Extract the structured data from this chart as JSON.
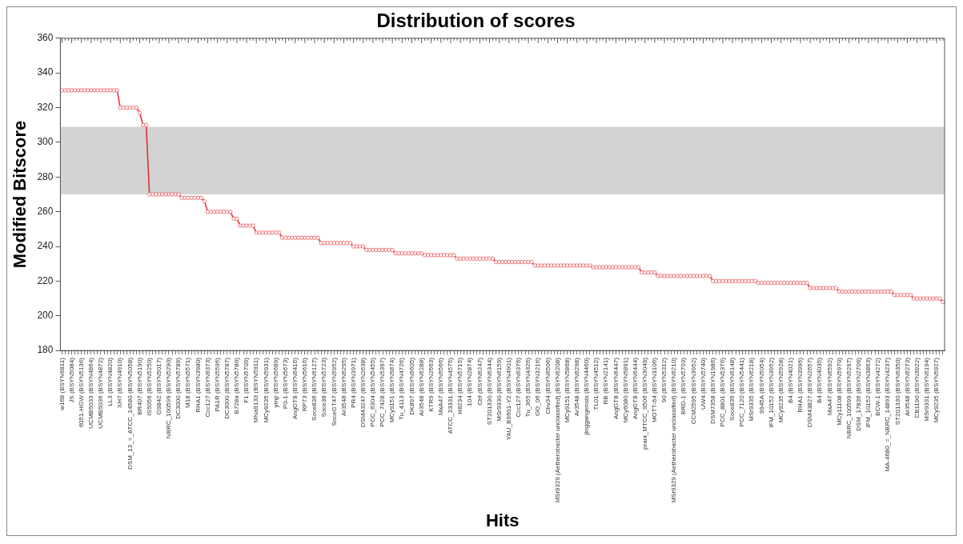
{
  "chart_data": {
    "type": "line",
    "title": "Distribution of scores",
    "xlabel": "Hits",
    "ylabel": "Modified Bitscore",
    "categories": [
      "w168 (BSYN6811)",
      null,
      null,
      "JS (BSYN5084)",
      null,
      null,
      "6051-HGW (BSYN5136)",
      null,
      null,
      "UCMB5033 (BSYN4864)",
      null,
      null,
      "UCMB5036 (BSYN4872)",
      null,
      null,
      "LL3 (BSYN4820)",
      null,
      null,
      "XH7 (BSYN4910)",
      null,
      null,
      "DSM_13_=_ATCC_14580 (BSYN5058)",
      null,
      null,
      "BR407 (BSYN5190)",
      null,
      null,
      "IS5056 (BSYN5250)",
      null,
      null,
      "G9842 (BSYN5017)",
      null,
      null,
      "NBRC_100599 (BSYN5290)",
      null,
      null,
      "DC3000 (BSYN5789)",
      null,
      null,
      "M18 (BSYN5571)",
      null,
      null,
      "RHA1 (BSYN3980)",
      null,
      null,
      "Ccc127 (BSYN6373)",
      null,
      null,
      "PA1R (BSYN5596)",
      null,
      null,
      "DC3000 (BSYN5787)",
      null,
      null,
      "B728a (BSYN5780)",
      null,
      null,
      "F1 (BSYN5709)",
      null,
      null,
      "MNa9133 (BSYN5911)",
      null,
      null,
      "MCy9235 (BSYN5931)",
      null,
      null,
      "ymp (BSYN5689)",
      null,
      null,
      "P0-1 (BSYN5673)",
      null,
      null,
      "AngGT8 (BSYN6416)",
      null,
      null,
      "RP73 (BSYN5616)",
      null,
      null,
      "Soce836 (BSYN6127)",
      null,
      null,
      "Soce38 (BSYN5723)",
      null,
      null,
      "SoceGT47 (BSYN5952)",
      null,
      null,
      "Ar3548 (BSYN6295)",
      null,
      null,
      "PR4 (BSYN3971)",
      null,
      null,
      "DSM43247 (BSYN2638)",
      null,
      null,
      "PCC_6304 (BSYN5455)",
      null,
      null,
      "PCC_7428 (BSYN5397)",
      null,
      null,
      "MCy9151 (BSYN5874)",
      null,
      null,
      "Tu_4113 (BSYN4726)",
      null,
      null,
      "DK897 (BSYN6605)",
      null,
      null,
      "Ar3548 (BSYN6288)",
      null,
      null,
      "KTR9 (BSYN2663)",
      null,
      null,
      "MxA47 (BSYN6566)",
      null,
      null,
      "ATCC_33331 (BSYN4575)",
      null,
      null,
      "H8234 (BSYN5715)",
      null,
      null,
      "104 (BSYN2874)",
      null,
      null,
      "Cbf (BSYN6247)",
      null,
      null,
      "ST201330 (BSYN6344)",
      null,
      null,
      "MSr9330 (BSYN6159)",
      null,
      null,
      "YAU_B9601-Y2 (BSYN4901)",
      null,
      null,
      "Ccc127 (BSYN6376)",
      null,
      null,
      "Tu_365 (BSYN4326)",
      null,
      null,
      "GO_06 (BSYN3216)",
      null,
      null,
      "Cbv34 (BSYN6506)",
      null,
      null,
      "MSr9329 (Aetherobacter unclassified) (BSYN6208)",
      null,
      null,
      "MCy9151 (BSYN5868)",
      null,
      null,
      "Ar3548 (BSYN6298)",
      null,
      null,
      "jinggangensis (BSYN4460)",
      null,
      null,
      "TL01 (BSYN4512)",
      null,
      null,
      "RB (BSYN2141)",
      null,
      null,
      "AngGT8 (BSYN6447)",
      null,
      null,
      "MCy6080 (BSYN5891)",
      null,
      null,
      "AngGT8 (BSYN6444)",
      null,
      null,
      "prani_MTCC_9506 (BSYN3049)",
      null,
      null,
      "MOTT-64 (BSYN3106)",
      null,
      null,
      "90 (BSYN5312)",
      null,
      null,
      "MSr9329 (Aetherobacter unclassified) (BSYN6210)",
      null,
      null,
      "BRD-1 (BSYN5703)",
      null,
      null,
      "CCM2595 (BSYN3952)",
      null,
      null,
      "UW4 (BSYN5740)",
      null,
      null,
      "DSM7358 (BSYN1986)",
      null,
      null,
      "PCC_8801 (BSYN5376)",
      null,
      null,
      "Soce836 (BSYN6148)",
      null,
      null,
      "PCC_7120 (BSYN5441)",
      null,
      null,
      "MSr9335 (BSYN6218)",
      null,
      null,
      "9945A (BSYN5054)",
      null,
      null,
      "IFM_10152 (BSYN3952)",
      null,
      null,
      "MCy9235 (BSYN5928)",
      null,
      null,
      "B4 (BSYN4021)",
      null,
      null,
      "RHA1 (BSYN3996)",
      null,
      null,
      "DSM43827 (BSYN2657)",
      null,
      null,
      "B4 (BSYN4035)",
      null,
      null,
      "MxA47 (BSYN6592)",
      null,
      null,
      "MCy11108 (BSYN5970)",
      null,
      null,
      "NBRC_100599 (BSYN5297)",
      null,
      null,
      "DSM_17836 (BSYN2709)",
      null,
      null,
      "IFM_10152 (BSYN3863)",
      null,
      null,
      "BCW-1 (BSYN4272)",
      null,
      null,
      "MA-4680_=_NBRC_14893 (BSYN4237)",
      null,
      null,
      "ST201330 (BSYN6350)",
      null,
      null,
      "Ar3548 (BSYN6273)",
      null,
      null,
      "CB1190 (BSYN3922)",
      null,
      null,
      "MSr9331 (BSYN6194)",
      null,
      null,
      "MCy9235 (BSYN5927)",
      null,
      null
    ],
    "series": [
      {
        "color": "#e8262b",
        "values": [
          330,
          330,
          330,
          330,
          330,
          330,
          330,
          330,
          330,
          330,
          330,
          330,
          330,
          330,
          330,
          330,
          330,
          330,
          320,
          320,
          320,
          320,
          320,
          320,
          317,
          310,
          310,
          270,
          270,
          270,
          270,
          270,
          270,
          270,
          270,
          270,
          270,
          268,
          268,
          268,
          268,
          268,
          268,
          268,
          266,
          260,
          260,
          260,
          260,
          260,
          260,
          260,
          260,
          256,
          256,
          252,
          252,
          252,
          252,
          252,
          248,
          248,
          248,
          248,
          248,
          248,
          248,
          248,
          245,
          245,
          245,
          245,
          245,
          245,
          245,
          245,
          245,
          245,
          245,
          245,
          242,
          242,
          242,
          242,
          242,
          242,
          242,
          242,
          242,
          242,
          240,
          240,
          240,
          240,
          238,
          238,
          238,
          238,
          238,
          238,
          238,
          238,
          238,
          236,
          236,
          236,
          236,
          236,
          236,
          236,
          236,
          236,
          235,
          235,
          235,
          235,
          235,
          235,
          235,
          235,
          235,
          235,
          233,
          233,
          233,
          233,
          233,
          233,
          233,
          233,
          233,
          233,
          233,
          233,
          231,
          231,
          231,
          231,
          231,
          231,
          231,
          231,
          231,
          231,
          231,
          231,
          229,
          229,
          229,
          229,
          229,
          229,
          229,
          229,
          229,
          229,
          229,
          229,
          229,
          229,
          229,
          229,
          229,
          229,
          228,
          228,
          228,
          228,
          228,
          228,
          228,
          228,
          228,
          228,
          228,
          228,
          228,
          228,
          228,
          225,
          225,
          225,
          225,
          225,
          223,
          223,
          223,
          223,
          223,
          223,
          223,
          223,
          223,
          223,
          223,
          223,
          223,
          223,
          223,
          223,
          223,
          220,
          220,
          220,
          220,
          220,
          220,
          220,
          220,
          220,
          220,
          220,
          220,
          220,
          220,
          219,
          219,
          219,
          219,
          219,
          219,
          219,
          219,
          219,
          219,
          219,
          219,
          219,
          219,
          219,
          219,
          216,
          216,
          216,
          216,
          216,
          216,
          216,
          216,
          216,
          214,
          214,
          214,
          214,
          214,
          214,
          214,
          214,
          214,
          214,
          214,
          214,
          214,
          214,
          214,
          214,
          214,
          212,
          212,
          212,
          212,
          212,
          212,
          210,
          210,
          210,
          210,
          210,
          210,
          210,
          210,
          210,
          208
        ]
      }
    ],
    "ylim": [
      180,
      360
    ],
    "yticks": [
      180,
      200,
      220,
      240,
      260,
      280,
      300,
      320,
      340,
      360
    ],
    "bands": [
      {
        "axis": "y",
        "from": 270,
        "to": 309,
        "color": "#d3d3d3"
      }
    ],
    "marker": "circle",
    "grid": false,
    "legend": false
  }
}
